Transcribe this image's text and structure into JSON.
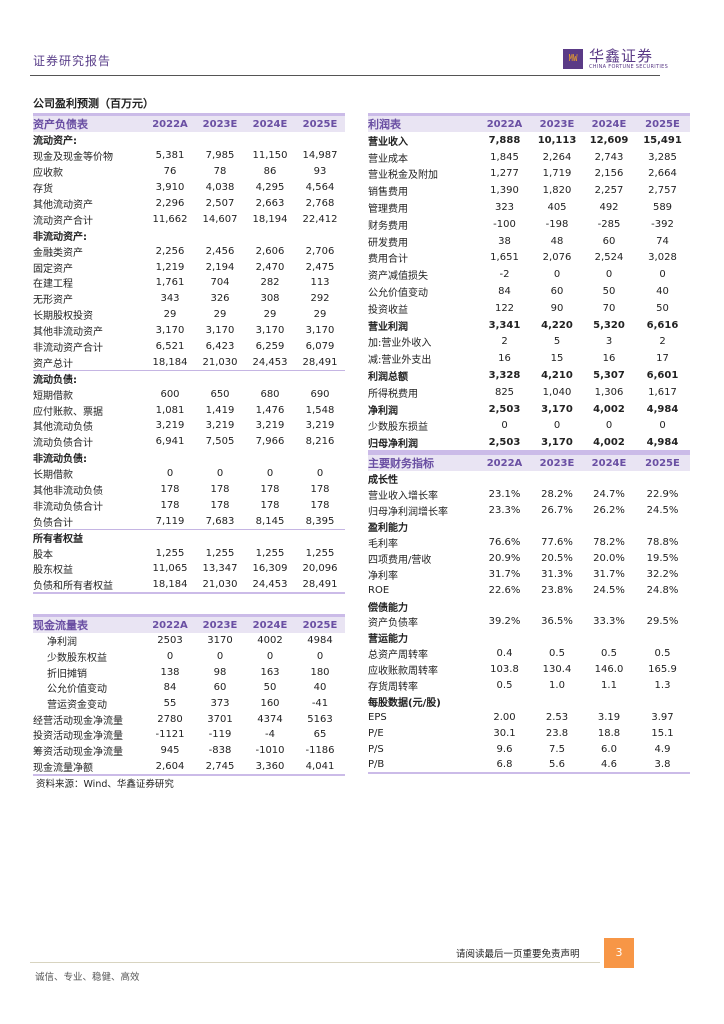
{
  "header": {
    "title": "证券研究报告",
    "logo_cn": "华鑫证券",
    "logo_en": "CHINA FORTUNE SECURITIES"
  },
  "page_title": "公司盈利预测（百万元）",
  "balance_sheet": {
    "title": "资产负债表",
    "years": [
      "2022A",
      "2023E",
      "2024E",
      "2025E"
    ],
    "rows": [
      {
        "label": "流动资产:",
        "type": "section",
        "values": [
          "",
          "",
          "",
          ""
        ]
      },
      {
        "label": "现金及现金等价物",
        "values": [
          "5,381",
          "7,985",
          "11,150",
          "14,987"
        ]
      },
      {
        "label": "应收款",
        "values": [
          "76",
          "78",
          "86",
          "93"
        ]
      },
      {
        "label": "存货",
        "values": [
          "3,910",
          "4,038",
          "4,295",
          "4,564"
        ]
      },
      {
        "label": "其他流动资产",
        "values": [
          "2,296",
          "2,507",
          "2,663",
          "2,768"
        ]
      },
      {
        "label": "流动资产合计",
        "values": [
          "11,662",
          "14,607",
          "18,194",
          "22,412"
        ]
      },
      {
        "label": "非流动资产:",
        "type": "section",
        "values": [
          "",
          "",
          "",
          ""
        ]
      },
      {
        "label": "金融类资产",
        "values": [
          "2,256",
          "2,456",
          "2,606",
          "2,706"
        ]
      },
      {
        "label": "固定资产",
        "values": [
          "1,219",
          "2,194",
          "2,470",
          "2,475"
        ]
      },
      {
        "label": "在建工程",
        "values": [
          "1,761",
          "704",
          "282",
          "113"
        ]
      },
      {
        "label": "无形资产",
        "values": [
          "343",
          "326",
          "308",
          "292"
        ]
      },
      {
        "label": "长期股权投资",
        "values": [
          "29",
          "29",
          "29",
          "29"
        ]
      },
      {
        "label": "其他非流动资产",
        "values": [
          "3,170",
          "3,170",
          "3,170",
          "3,170"
        ]
      },
      {
        "label": "非流动资产合计",
        "values": [
          "6,521",
          "6,423",
          "6,259",
          "6,079"
        ]
      },
      {
        "label": "资产总计",
        "type": "total",
        "values": [
          "18,184",
          "21,030",
          "24,453",
          "28,491"
        ]
      },
      {
        "label": "流动负债:",
        "type": "section",
        "values": [
          "",
          "",
          "",
          ""
        ]
      },
      {
        "label": "短期借款",
        "values": [
          "600",
          "650",
          "680",
          "690"
        ]
      },
      {
        "label": "应付账款、票据",
        "values": [
          "1,081",
          "1,419",
          "1,476",
          "1,548"
        ]
      },
      {
        "label": "其他流动负债",
        "values": [
          "3,219",
          "3,219",
          "3,219",
          "3,219"
        ]
      },
      {
        "label": "流动负债合计",
        "values": [
          "6,941",
          "7,505",
          "7,966",
          "8,216"
        ]
      },
      {
        "label": "非流动负债:",
        "type": "section",
        "values": [
          "",
          "",
          "",
          ""
        ]
      },
      {
        "label": "长期借款",
        "values": [
          "0",
          "0",
          "0",
          "0"
        ]
      },
      {
        "label": "其他非流动负债",
        "values": [
          "178",
          "178",
          "178",
          "178"
        ]
      },
      {
        "label": "非流动负债合计",
        "values": [
          "178",
          "178",
          "178",
          "178"
        ]
      },
      {
        "label": "负债合计",
        "type": "total",
        "values": [
          "7,119",
          "7,683",
          "8,145",
          "8,395"
        ]
      },
      {
        "label": "所有者权益",
        "type": "section",
        "values": [
          "",
          "",
          "",
          ""
        ]
      },
      {
        "label": "股本",
        "values": [
          "1,255",
          "1,255",
          "1,255",
          "1,255"
        ]
      },
      {
        "label": "股东权益",
        "values": [
          "11,065",
          "13,347",
          "16,309",
          "20,096"
        ]
      },
      {
        "label": "负债和所有者权益",
        "values": [
          "18,184",
          "21,030",
          "24,453",
          "28,491"
        ]
      }
    ]
  },
  "income_statement": {
    "title": "利润表",
    "years": [
      "2022A",
      "2023E",
      "2024E",
      "2025E"
    ],
    "rows": [
      {
        "label": "营业收入",
        "type": "bold",
        "values": [
          "7,888",
          "10,113",
          "12,609",
          "15,491"
        ]
      },
      {
        "label": "营业成本",
        "values": [
          "1,845",
          "2,264",
          "2,743",
          "3,285"
        ]
      },
      {
        "label": "营业税金及附加",
        "values": [
          "1,277",
          "1,719",
          "2,156",
          "2,664"
        ]
      },
      {
        "label": "销售费用",
        "values": [
          "1,390",
          "1,820",
          "2,257",
          "2,757"
        ]
      },
      {
        "label": "管理费用",
        "values": [
          "323",
          "405",
          "492",
          "589"
        ]
      },
      {
        "label": "财务费用",
        "values": [
          "-100",
          "-198",
          "-285",
          "-392"
        ]
      },
      {
        "label": "研发费用",
        "values": [
          "38",
          "48",
          "60",
          "74"
        ]
      },
      {
        "label": "费用合计",
        "values": [
          "1,651",
          "2,076",
          "2,524",
          "3,028"
        ]
      },
      {
        "label": "资产减值损失",
        "values": [
          "-2",
          "0",
          "0",
          "0"
        ]
      },
      {
        "label": "公允价值变动",
        "values": [
          "84",
          "60",
          "50",
          "40"
        ]
      },
      {
        "label": "投资收益",
        "values": [
          "122",
          "90",
          "70",
          "50"
        ]
      },
      {
        "label": "营业利润",
        "type": "bold",
        "values": [
          "3,341",
          "4,220",
          "5,320",
          "6,616"
        ]
      },
      {
        "label": "加:营业外收入",
        "values": [
          "2",
          "5",
          "3",
          "2"
        ]
      },
      {
        "label": "减:营业外支出",
        "values": [
          "16",
          "15",
          "16",
          "17"
        ]
      },
      {
        "label": "利润总额",
        "type": "bold",
        "values": [
          "3,328",
          "4,210",
          "5,307",
          "6,601"
        ]
      },
      {
        "label": "所得税费用",
        "values": [
          "825",
          "1,040",
          "1,306",
          "1,617"
        ]
      },
      {
        "label": "净利润",
        "type": "bold",
        "values": [
          "2,503",
          "3,170",
          "4,002",
          "4,984"
        ]
      },
      {
        "label": "少数股东损益",
        "values": [
          "0",
          "0",
          "0",
          "0"
        ]
      },
      {
        "label": "归母净利润",
        "type": "bold",
        "values": [
          "2,503",
          "3,170",
          "4,002",
          "4,984"
        ]
      }
    ]
  },
  "financial_indicators": {
    "title": "主要财务指标",
    "years": [
      "2022A",
      "2023E",
      "2024E",
      "2025E"
    ],
    "rows": [
      {
        "label": "成长性",
        "type": "section",
        "values": [
          "",
          "",
          "",
          ""
        ]
      },
      {
        "label": "营业收入增长率",
        "values": [
          "23.1%",
          "28.2%",
          "24.7%",
          "22.9%"
        ]
      },
      {
        "label": "归母净利润增长率",
        "values": [
          "23.3%",
          "26.7%",
          "26.2%",
          "24.5%"
        ]
      },
      {
        "label": "盈利能力",
        "type": "section",
        "values": [
          "",
          "",
          "",
          ""
        ]
      },
      {
        "label": "毛利率",
        "values": [
          "76.6%",
          "77.6%",
          "78.2%",
          "78.8%"
        ]
      },
      {
        "label": "四项费用/营收",
        "values": [
          "20.9%",
          "20.5%",
          "20.0%",
          "19.5%"
        ]
      },
      {
        "label": "净利率",
        "values": [
          "31.7%",
          "31.3%",
          "31.7%",
          "32.2%"
        ]
      },
      {
        "label": "ROE",
        "values": [
          "22.6%",
          "23.8%",
          "24.5%",
          "24.8%"
        ]
      },
      {
        "label": "偿债能力",
        "type": "section",
        "values": [
          "",
          "",
          "",
          ""
        ]
      },
      {
        "label": "资产负债率",
        "values": [
          "39.2%",
          "36.5%",
          "33.3%",
          "29.5%"
        ]
      },
      {
        "label": "营运能力",
        "type": "section",
        "values": [
          "",
          "",
          "",
          ""
        ]
      },
      {
        "label": "总资产周转率",
        "values": [
          "0.4",
          "0.5",
          "0.5",
          "0.5"
        ]
      },
      {
        "label": "应收账款周转率",
        "values": [
          "103.8",
          "130.4",
          "146.0",
          "165.9"
        ]
      },
      {
        "label": "存货周转率",
        "values": [
          "0.5",
          "1.0",
          "1.1",
          "1.3"
        ]
      },
      {
        "label": "每股数据(元/股)",
        "type": "section",
        "values": [
          "",
          "",
          "",
          ""
        ]
      },
      {
        "label": "EPS",
        "values": [
          "2.00",
          "2.53",
          "3.19",
          "3.97"
        ]
      },
      {
        "label": "P/E",
        "values": [
          "30.1",
          "23.8",
          "18.8",
          "15.1"
        ]
      },
      {
        "label": "P/S",
        "values": [
          "9.6",
          "7.5",
          "6.0",
          "4.9"
        ]
      },
      {
        "label": "P/B",
        "values": [
          "6.8",
          "5.6",
          "4.6",
          "3.8"
        ]
      }
    ]
  },
  "cash_flow": {
    "title": "现金流量表",
    "years": [
      "2022A",
      "2023E",
      "2024E",
      "2025E"
    ],
    "rows": [
      {
        "label": "净利润",
        "type": "indent",
        "values": [
          "2503",
          "3170",
          "4002",
          "4984"
        ]
      },
      {
        "label": "少数股东权益",
        "type": "indent",
        "values": [
          "0",
          "0",
          "0",
          "0"
        ]
      },
      {
        "label": "折旧摊销",
        "type": "indent",
        "values": [
          "138",
          "98",
          "163",
          "180"
        ]
      },
      {
        "label": "公允价值变动",
        "type": "indent",
        "values": [
          "84",
          "60",
          "50",
          "40"
        ]
      },
      {
        "label": "营运资金变动",
        "type": "indent",
        "values": [
          "55",
          "373",
          "160",
          "-41"
        ]
      },
      {
        "label": "经营活动现金净流量",
        "values": [
          "2780",
          "3701",
          "4374",
          "5163"
        ]
      },
      {
        "label": "投资活动现金净流量",
        "values": [
          "-1121",
          "-119",
          "-4",
          "65"
        ]
      },
      {
        "label": "筹资活动现金净流量",
        "values": [
          "945",
          "-838",
          "-1010",
          "-1186"
        ]
      },
      {
        "label": "现金流量净额",
        "values": [
          "2,604",
          "2,745",
          "3,360",
          "4,041"
        ]
      }
    ]
  },
  "source": "资料来源：Wind、华鑫证券研究",
  "footer": {
    "disclaimer": "请阅读最后一页重要免责声明",
    "page_number": "3",
    "motto": "诚信、专业、稳健、高效"
  },
  "colors": {
    "brand_purple": "#5a3a86",
    "header_bg": "#e9e4f3",
    "header_text": "#6a4fa3",
    "page_badge": "#f79646"
  }
}
